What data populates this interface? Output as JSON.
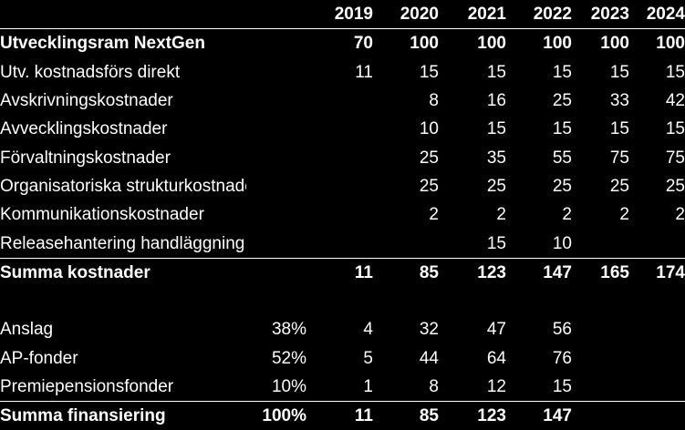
{
  "years": [
    "2019",
    "2020",
    "2021",
    "2022",
    "2023",
    "2024"
  ],
  "rows": [
    {
      "label": "Utvecklingsram NextGen",
      "pct": "",
      "values": [
        "70",
        "100",
        "100",
        "100",
        "100",
        "100"
      ]
    },
    {
      "label": "Utv. kostnadsförs direkt",
      "pct": "",
      "values": [
        "11",
        "15",
        "15",
        "15",
        "15",
        "15"
      ]
    },
    {
      "label": "Avskrivningskostnader",
      "pct": "",
      "values": [
        "",
        "8",
        "16",
        "25",
        "33",
        "42"
      ]
    },
    {
      "label": "Avvecklingskostnader",
      "pct": "",
      "values": [
        "",
        "10",
        "15",
        "15",
        "15",
        "15"
      ]
    },
    {
      "label": "Förvaltningskostnader",
      "pct": "",
      "values": [
        "",
        "25",
        "35",
        "55",
        "75",
        "75"
      ]
    },
    {
      "label": "Organisatoriska strukturkostnader",
      "pct": "",
      "values": [
        "",
        "25",
        "25",
        "25",
        "25",
        "25"
      ]
    },
    {
      "label": "Kommunikationskostnader",
      "pct": "",
      "values": [
        "",
        "2",
        "2",
        "2",
        "2",
        "2"
      ]
    },
    {
      "label": "Releasehantering handläggning",
      "pct": "",
      "values": [
        "",
        "",
        "15",
        "10",
        "",
        ""
      ]
    },
    {
      "label": "Summa kostnader",
      "pct": "",
      "values": [
        "11",
        "85",
        "123",
        "147",
        "165",
        "174"
      ]
    },
    {
      "label": "",
      "pct": "",
      "values": [
        "",
        "",
        "",
        "",
        "",
        ""
      ]
    },
    {
      "label": "Anslag",
      "pct": "38%",
      "values": [
        "4",
        "32",
        "47",
        "56",
        "",
        ""
      ]
    },
    {
      "label": "AP-fonder",
      "pct": "52%",
      "values": [
        "5",
        "44",
        "64",
        "76",
        "",
        ""
      ]
    },
    {
      "label": "Premiepensionsfonder",
      "pct": "10%",
      "values": [
        "1",
        "8",
        "12",
        "15",
        "",
        ""
      ]
    },
    {
      "label": "Summa finansiering",
      "pct": "100%",
      "values": [
        "11",
        "85",
        "123",
        "147",
        "",
        ""
      ]
    }
  ]
}
